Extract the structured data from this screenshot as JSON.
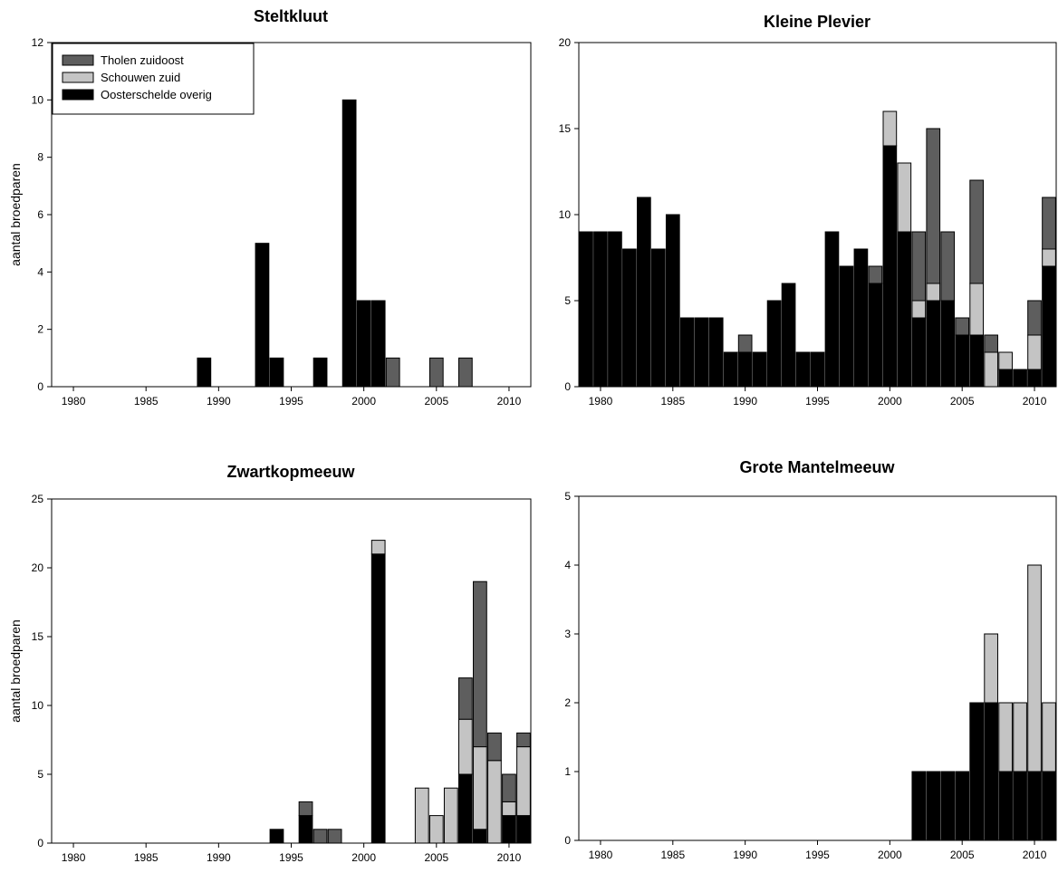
{
  "colors": {
    "Tholen zuidoost": "#5e5e5e",
    "Schouwen zuid": "#c4c4c4",
    "Oosterschelde overig": "#000000"
  },
  "chart_data": [
    {
      "type": "bar",
      "stacked": true,
      "title": "Steltkluut",
      "ylabel": "aantal broedparen",
      "xlabel": "",
      "xlim": [
        1978.5,
        2011.5
      ],
      "ylim": [
        0,
        12
      ],
      "xticks": [
        1980,
        1985,
        1990,
        1995,
        2000,
        2005,
        2010
      ],
      "yticks": [
        0,
        2,
        4,
        6,
        8,
        10,
        12
      ],
      "legend": {
        "placement": "top-left",
        "entries": [
          "Tholen zuidoost",
          "Schouwen zuid",
          "Oosterschelde overig"
        ]
      },
      "bars": [
        {
          "year": 1989,
          "overig": 1,
          "schouwen": 0,
          "tholen": 0
        },
        {
          "year": 1993,
          "overig": 5,
          "schouwen": 0,
          "tholen": 0
        },
        {
          "year": 1994,
          "overig": 1,
          "schouwen": 0,
          "tholen": 0
        },
        {
          "year": 1997,
          "overig": 1,
          "schouwen": 0,
          "tholen": 0
        },
        {
          "year": 1999,
          "overig": 10,
          "schouwen": 0,
          "tholen": 0
        },
        {
          "year": 2000,
          "overig": 3,
          "schouwen": 0,
          "tholen": 0
        },
        {
          "year": 2001,
          "overig": 3,
          "schouwen": 0,
          "tholen": 0
        },
        {
          "year": 2002,
          "overig": 0,
          "schouwen": 0,
          "tholen": 1
        },
        {
          "year": 2005,
          "overig": 0,
          "schouwen": 0,
          "tholen": 1
        },
        {
          "year": 2007,
          "overig": 0,
          "schouwen": 0,
          "tholen": 1
        }
      ]
    },
    {
      "type": "bar",
      "stacked": true,
      "title": "Kleine Plevier",
      "ylabel": "",
      "xlabel": "",
      "xlim": [
        1978.5,
        2011.5
      ],
      "ylim": [
        0,
        20
      ],
      "xticks": [
        1980,
        1985,
        1990,
        1995,
        2000,
        2005,
        2010
      ],
      "yticks": [
        0,
        5,
        10,
        15,
        20
      ],
      "legend": null,
      "bars": [
        {
          "year": 1979,
          "overig": 9,
          "schouwen": 0,
          "tholen": 0
        },
        {
          "year": 1980,
          "overig": 9,
          "schouwen": 0,
          "tholen": 0
        },
        {
          "year": 1981,
          "overig": 9,
          "schouwen": 0,
          "tholen": 0
        },
        {
          "year": 1982,
          "overig": 8,
          "schouwen": 0,
          "tholen": 0
        },
        {
          "year": 1983,
          "overig": 11,
          "schouwen": 0,
          "tholen": 0
        },
        {
          "year": 1984,
          "overig": 8,
          "schouwen": 0,
          "tholen": 0
        },
        {
          "year": 1985,
          "overig": 10,
          "schouwen": 0,
          "tholen": 0
        },
        {
          "year": 1986,
          "overig": 4,
          "schouwen": 0,
          "tholen": 0
        },
        {
          "year": 1987,
          "overig": 4,
          "schouwen": 0,
          "tholen": 0
        },
        {
          "year": 1988,
          "overig": 4,
          "schouwen": 0,
          "tholen": 0
        },
        {
          "year": 1989,
          "overig": 2,
          "schouwen": 0,
          "tholen": 0
        },
        {
          "year": 1990,
          "overig": 2,
          "schouwen": 0,
          "tholen": 1
        },
        {
          "year": 1991,
          "overig": 2,
          "schouwen": 0,
          "tholen": 0
        },
        {
          "year": 1992,
          "overig": 5,
          "schouwen": 0,
          "tholen": 0
        },
        {
          "year": 1993,
          "overig": 6,
          "schouwen": 0,
          "tholen": 0
        },
        {
          "year": 1994,
          "overig": 2,
          "schouwen": 0,
          "tholen": 0
        },
        {
          "year": 1995,
          "overig": 2,
          "schouwen": 0,
          "tholen": 0
        },
        {
          "year": 1996,
          "overig": 9,
          "schouwen": 0,
          "tholen": 0
        },
        {
          "year": 1997,
          "overig": 7,
          "schouwen": 0,
          "tholen": 0
        },
        {
          "year": 1998,
          "overig": 8,
          "schouwen": 0,
          "tholen": 0
        },
        {
          "year": 1999,
          "overig": 6,
          "schouwen": 0,
          "tholen": 1
        },
        {
          "year": 2000,
          "overig": 14,
          "schouwen": 2,
          "tholen": 0
        },
        {
          "year": 2001,
          "overig": 9,
          "schouwen": 4,
          "tholen": 0
        },
        {
          "year": 2002,
          "overig": 4,
          "schouwen": 1,
          "tholen": 4
        },
        {
          "year": 2003,
          "overig": 5,
          "schouwen": 1,
          "tholen": 9
        },
        {
          "year": 2004,
          "overig": 5,
          "schouwen": 0,
          "tholen": 4
        },
        {
          "year": 2005,
          "overig": 3,
          "schouwen": 0,
          "tholen": 1
        },
        {
          "year": 2006,
          "overig": 3,
          "schouwen": 3,
          "tholen": 6
        },
        {
          "year": 2007,
          "overig": 0,
          "schouwen": 2,
          "tholen": 1
        },
        {
          "year": 2008,
          "overig": 1,
          "schouwen": 1,
          "tholen": 0
        },
        {
          "year": 2009,
          "overig": 1,
          "schouwen": 0,
          "tholen": 0
        },
        {
          "year": 2010,
          "overig": 1,
          "schouwen": 2,
          "tholen": 2
        },
        {
          "year": 2011,
          "overig": 7,
          "schouwen": 1,
          "tholen": 3
        }
      ]
    },
    {
      "type": "bar",
      "stacked": true,
      "title": "Zwartkopmeeuw",
      "ylabel": "aantal broedparen",
      "xlabel": "",
      "xlim": [
        1978.5,
        2011.5
      ],
      "ylim": [
        0,
        25
      ],
      "xticks": [
        1980,
        1985,
        1990,
        1995,
        2000,
        2005,
        2010
      ],
      "yticks": [
        0,
        5,
        10,
        15,
        20,
        25
      ],
      "legend": null,
      "bars": [
        {
          "year": 1994,
          "overig": 1,
          "schouwen": 0,
          "tholen": 0
        },
        {
          "year": 1996,
          "overig": 2,
          "schouwen": 0,
          "tholen": 1
        },
        {
          "year": 1997,
          "overig": 0,
          "schouwen": 0,
          "tholen": 1
        },
        {
          "year": 1998,
          "overig": 0,
          "schouwen": 0,
          "tholen": 1
        },
        {
          "year": 2001,
          "overig": 21,
          "schouwen": 1,
          "tholen": 0
        },
        {
          "year": 2004,
          "overig": 0,
          "schouwen": 4,
          "tholen": 0
        },
        {
          "year": 2005,
          "overig": 0,
          "schouwen": 2,
          "tholen": 0
        },
        {
          "year": 2006,
          "overig": 0,
          "schouwen": 4,
          "tholen": 0
        },
        {
          "year": 2007,
          "overig": 5,
          "schouwen": 4,
          "tholen": 3
        },
        {
          "year": 2008,
          "overig": 1,
          "schouwen": 6,
          "tholen": 12
        },
        {
          "year": 2009,
          "overig": 0,
          "schouwen": 6,
          "tholen": 2
        },
        {
          "year": 2010,
          "overig": 2,
          "schouwen": 1,
          "tholen": 2
        },
        {
          "year": 2011,
          "overig": 2,
          "schouwen": 5,
          "tholen": 1
        }
      ]
    },
    {
      "type": "bar",
      "stacked": true,
      "title": "Grote Mantelmeeuw",
      "ylabel": "",
      "xlabel": "",
      "xlim": [
        1978.5,
        2011.5
      ],
      "ylim": [
        0,
        5
      ],
      "xticks": [
        1980,
        1985,
        1990,
        1995,
        2000,
        2005,
        2010
      ],
      "yticks": [
        0,
        1,
        2,
        3,
        4,
        5
      ],
      "legend": null,
      "bars": [
        {
          "year": 2002,
          "overig": 1,
          "schouwen": 0,
          "tholen": 0
        },
        {
          "year": 2003,
          "overig": 1,
          "schouwen": 0,
          "tholen": 0
        },
        {
          "year": 2004,
          "overig": 1,
          "schouwen": 0,
          "tholen": 0
        },
        {
          "year": 2005,
          "overig": 1,
          "schouwen": 0,
          "tholen": 0
        },
        {
          "year": 2006,
          "overig": 2,
          "schouwen": 0,
          "tholen": 0
        },
        {
          "year": 2007,
          "overig": 2,
          "schouwen": 1,
          "tholen": 0
        },
        {
          "year": 2008,
          "overig": 1,
          "schouwen": 1,
          "tholen": 0
        },
        {
          "year": 2009,
          "overig": 1,
          "schouwen": 1,
          "tholen": 0
        },
        {
          "year": 2010,
          "overig": 1,
          "schouwen": 3,
          "tholen": 0
        },
        {
          "year": 2011,
          "overig": 1,
          "schouwen": 1,
          "tholen": 0
        }
      ]
    }
  ]
}
